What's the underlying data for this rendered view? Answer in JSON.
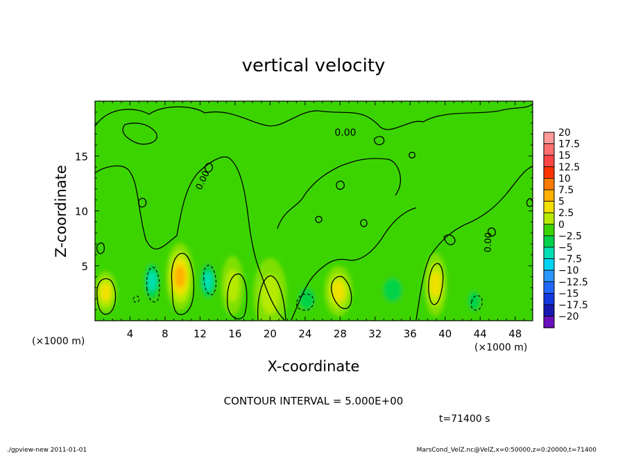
{
  "chart_data": {
    "type": "heatmap",
    "title": "vertical velocity",
    "xlabel": "X-coordinate",
    "ylabel": "Z-coordinate",
    "x_unit_label": "(×1000 m)",
    "y_unit_label": "(×1000 m)",
    "x_ticks": [
      4,
      8,
      12,
      16,
      20,
      24,
      28,
      32,
      36,
      40,
      44,
      48
    ],
    "y_ticks": [
      5,
      10,
      15
    ],
    "xlim": [
      0,
      50
    ],
    "ylim": [
      0,
      20
    ],
    "contour_interval_text": "CONTOUR INTERVAL = 5.000E+00",
    "contour_label": "0.00",
    "time_label": "t=71400 s",
    "colorbar": {
      "labels": [
        "20",
        "17.5",
        "15",
        "12.5",
        "10",
        "7.5",
        "5",
        "2.5",
        "0",
        "−2.5",
        "−5",
        "−7.5",
        "−10",
        "−12.5",
        "−15",
        "−17.5",
        "−20"
      ],
      "colors": [
        "#ff9a9a",
        "#ff7070",
        "#ff4545",
        "#ff3300",
        "#ff7a00",
        "#ffb000",
        "#f3e000",
        "#b8ea00",
        "#3cd400",
        "#00d24c",
        "#00e0b4",
        "#00d4f4",
        "#2a96ff",
        "#2266ff",
        "#1238e0",
        "#1818b0",
        "#6a10bc"
      ]
    },
    "updrafts": [
      {
        "x": 1.2,
        "z": 2.6,
        "peak": 6,
        "wx": 1.0,
        "wz": 1.6
      },
      {
        "x": 9.7,
        "z": 4.0,
        "peak": 9,
        "wx": 1.3,
        "wz": 2.8
      },
      {
        "x": 15.7,
        "z": 3.2,
        "peak": 2.5,
        "wx": 1.0,
        "wz": 2.4
      },
      {
        "x": 20.0,
        "z": 2.4,
        "peak": 2,
        "wx": 1.6,
        "wz": 3.0
      },
      {
        "x": 27.8,
        "z": 2.7,
        "peak": 7,
        "wx": 1.3,
        "wz": 2.0
      },
      {
        "x": 38.9,
        "z": 3.3,
        "peak": 7,
        "wx": 1.0,
        "wz": 2.6
      }
    ],
    "downdrafts": [
      {
        "x": 6.5,
        "z": 3.6,
        "peak": -6,
        "wx": 0.8,
        "wz": 1.9
      },
      {
        "x": 12.9,
        "z": 3.6,
        "peak": -5,
        "wx": 0.8,
        "wz": 1.8
      },
      {
        "x": 24.2,
        "z": 2.0,
        "peak": -4,
        "wx": 1.2,
        "wz": 1.3
      },
      {
        "x": 43.3,
        "z": 1.8,
        "peak": -4,
        "wx": 0.7,
        "wz": 1.1
      },
      {
        "x": 34.0,
        "z": 2.8,
        "peak": -2,
        "wx": 1.5,
        "wz": 1.5
      }
    ]
  },
  "footer": {
    "left": "./gpview-new   2011-01-01",
    "right": "MarsCond_VelZ.nc@VelZ,x=0:50000,z=0:20000,t=71400"
  }
}
